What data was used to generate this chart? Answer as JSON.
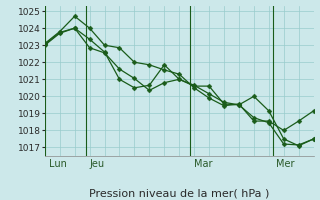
{
  "title": "Pression niveau de la mer( hPa )",
  "bg_color": "#cce8ea",
  "grid_color": "#99cccc",
  "line_color": "#1a5c1a",
  "ylim": [
    1016.5,
    1025.3
  ],
  "yticks": [
    1017,
    1018,
    1019,
    1020,
    1021,
    1022,
    1023,
    1024,
    1025
  ],
  "day_labels": [
    "Lun",
    "Jeu",
    "Mar",
    "Mer"
  ],
  "series": [
    {
      "x": [
        0,
        2,
        4,
        6,
        8,
        10,
        12,
        14,
        16,
        18,
        20,
        22,
        24,
        26,
        28,
        30,
        32,
        34,
        36
      ],
      "y": [
        1023.0,
        1023.7,
        1024.0,
        1022.85,
        1022.55,
        1021.6,
        1021.05,
        1020.35,
        1020.8,
        1021.0,
        1020.6,
        1020.6,
        1019.55,
        1019.5,
        1020.0,
        1019.15,
        1017.5,
        1017.1,
        1017.5
      ]
    },
    {
      "x": [
        0,
        2,
        4,
        6,
        8,
        10,
        12,
        14,
        16,
        18,
        20,
        22,
        24,
        26,
        28,
        30,
        32,
        34,
        36
      ],
      "y": [
        1023.1,
        1023.8,
        1024.7,
        1024.0,
        1023.0,
        1022.85,
        1022.0,
        1021.85,
        1021.55,
        1021.3,
        1020.5,
        1019.9,
        1019.45,
        1019.55,
        1018.55,
        1018.55,
        1018.0,
        1018.55,
        1019.15
      ]
    },
    {
      "x": [
        0,
        2,
        4,
        6,
        8,
        10,
        12,
        14,
        16,
        18,
        20,
        22,
        24,
        26,
        28,
        30,
        32,
        34,
        36
      ],
      "y": [
        1023.05,
        1023.75,
        1024.0,
        1023.35,
        1022.6,
        1021.0,
        1020.5,
        1020.65,
        1021.85,
        1021.0,
        1020.65,
        1020.15,
        1019.65,
        1019.5,
        1018.75,
        1018.45,
        1017.2,
        1017.15,
        1017.5
      ]
    }
  ],
  "vline_xvals": [
    0,
    5.5,
    19.5,
    30.5
  ],
  "day_label_xvals": [
    0.5,
    6.0,
    20.0,
    31.0
  ],
  "xlabel_fontsize": 7,
  "ylabel_fontsize": 6.5,
  "title_fontsize": 8,
  "marker_size": 2.5,
  "line_width": 0.9
}
